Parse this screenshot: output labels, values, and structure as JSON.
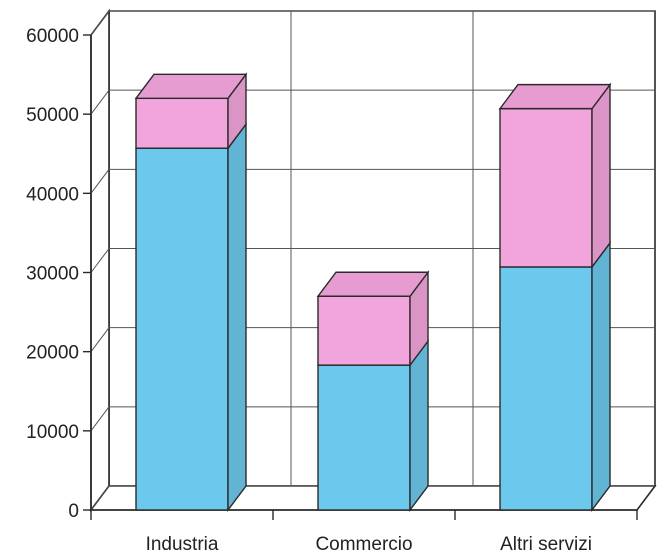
{
  "chart_data": {
    "type": "bar",
    "stacked": true,
    "three_d": true,
    "categories": [
      "Industria",
      "Commercio",
      "Altri servizi"
    ],
    "series": [
      {
        "values": [
          45700,
          18300,
          30700
        ],
        "color": "#6cc8ec"
      },
      {
        "values": [
          6300,
          8700,
          20000
        ],
        "color": "#f2a4dc"
      }
    ],
    "ylim": [
      0,
      60000
    ],
    "yticks": [
      "0",
      "10000",
      "20000",
      "30000",
      "40000",
      "50000",
      "60000"
    ],
    "grid": true,
    "legend": "none",
    "title": "",
    "xlabel": "",
    "ylabel": ""
  }
}
